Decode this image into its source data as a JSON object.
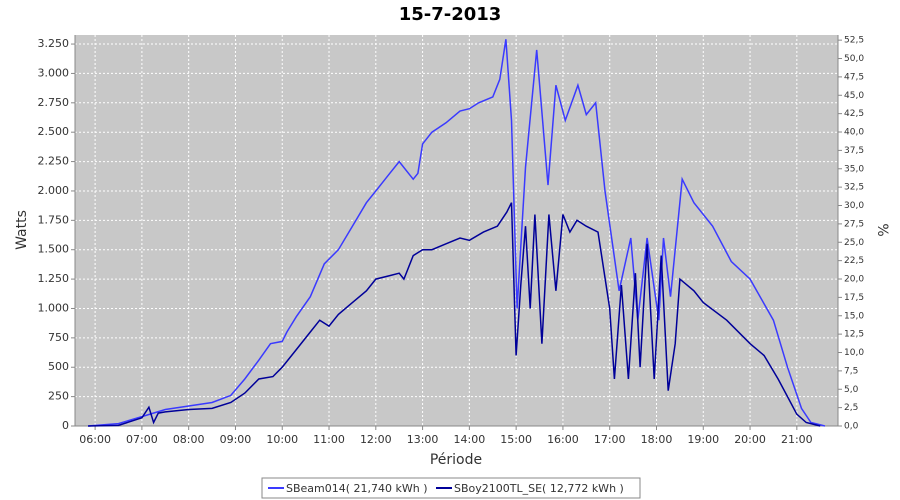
{
  "chart_data": {
    "type": "line",
    "title": "15-7-2013",
    "x_label": "Période",
    "y_label": "Watts",
    "y2_label": "%",
    "xlim": [
      5.57,
      21.88
    ],
    "xticks": [
      {
        "value": 6,
        "label": "06:00"
      },
      {
        "value": 7,
        "label": "07:00"
      },
      {
        "value": 8,
        "label": "08:00"
      },
      {
        "value": 9,
        "label": "09:00"
      },
      {
        "value": 10,
        "label": "10:00"
      },
      {
        "value": 11,
        "label": "11:00"
      },
      {
        "value": 12,
        "label": "12:00"
      },
      {
        "value": 13,
        "label": "13:00"
      },
      {
        "value": 14,
        "label": "14:00"
      },
      {
        "value": 15,
        "label": "15:00"
      },
      {
        "value": 16,
        "label": "16:00"
      },
      {
        "value": 17,
        "label": "17:00"
      },
      {
        "value": 18,
        "label": "18:00"
      },
      {
        "value": 19,
        "label": "19:00"
      },
      {
        "value": 20,
        "label": "20:00"
      },
      {
        "value": 21,
        "label": "21:00"
      }
    ],
    "ylim": [
      0,
      3327
    ],
    "yticks": [
      0,
      250,
      500,
      750,
      {
        "value": 1000,
        "label": "1.000"
      },
      {
        "value": 1250,
        "label": "1.250"
      },
      {
        "value": 1500,
        "label": "1.500"
      },
      {
        "value": 1750,
        "label": "1.750"
      },
      {
        "value": 2000,
        "label": "2.000"
      },
      {
        "value": 2250,
        "label": "2.250"
      },
      {
        "value": 2500,
        "label": "2.500"
      },
      {
        "value": 2750,
        "label": "2.750"
      },
      {
        "value": 3000,
        "label": "3.000"
      },
      {
        "value": 3250,
        "label": "3.250"
      }
    ],
    "y2lim": [
      0,
      53.2
    ],
    "y2ticks": [
      {
        "value": 0,
        "label": "0,0"
      },
      {
        "value": 2.5,
        "label": "2,5"
      },
      {
        "value": 5,
        "label": "5,0"
      },
      {
        "value": 7.5,
        "label": "7,5"
      },
      {
        "value": 10,
        "label": "10,0"
      },
      {
        "value": 12.5,
        "label": "12,5"
      },
      {
        "value": 15,
        "label": "15,0"
      },
      {
        "value": 17.5,
        "label": "17,5"
      },
      {
        "value": 20,
        "label": "20,0"
      },
      {
        "value": 22.5,
        "label": "22,5"
      },
      {
        "value": 25,
        "label": "25,0"
      },
      {
        "value": 27.5,
        "label": "27,5"
      },
      {
        "value": 30,
        "label": "30,0"
      },
      {
        "value": 32.5,
        "label": "32,5"
      },
      {
        "value": 35,
        "label": "35,0"
      },
      {
        "value": 37.5,
        "label": "37,5"
      },
      {
        "value": 40,
        "label": "40,0"
      },
      {
        "value": 42.5,
        "label": "42,5"
      },
      {
        "value": 45,
        "label": "45,0"
      },
      {
        "value": 47.5,
        "label": "47,5"
      },
      {
        "value": 50,
        "label": "50,0"
      },
      {
        "value": 52.5,
        "label": "52,5"
      }
    ],
    "grid": true,
    "series": [
      {
        "name": "SBeam014( 21,740 kWh )",
        "color": "#3a3aff",
        "x": [
          5.85,
          6.5,
          7.0,
          7.5,
          8.0,
          8.5,
          8.9,
          9.2,
          9.5,
          9.75,
          10.0,
          10.1,
          10.3,
          10.6,
          10.9,
          11.2,
          11.5,
          11.8,
          12.0,
          12.3,
          12.5,
          12.7,
          12.8,
          12.9,
          13.0,
          13.2,
          13.5,
          13.8,
          14.0,
          14.2,
          14.5,
          14.65,
          14.78,
          14.9,
          15.02,
          15.2,
          15.44,
          15.68,
          15.85,
          16.05,
          16.32,
          16.5,
          16.7,
          16.9,
          17.2,
          17.45,
          17.6,
          17.8,
          18.05,
          18.15,
          18.3,
          18.55,
          18.8,
          19.2,
          19.6,
          20.0,
          20.5,
          20.8,
          21.1,
          21.3,
          21.6
        ],
        "values": [
          0,
          20,
          80,
          140,
          170,
          200,
          260,
          400,
          560,
          700,
          720,
          800,
          930,
          1100,
          1380,
          1500,
          1700,
          1900,
          2000,
          2150,
          2250,
          2150,
          2100,
          2150,
          2400,
          2500,
          2580,
          2680,
          2700,
          2750,
          2800,
          2950,
          3290,
          2600,
          1000,
          2200,
          3200,
          2050,
          2900,
          2600,
          2900,
          2650,
          2750,
          2000,
          1150,
          1600,
          900,
          1600,
          900,
          1600,
          1100,
          2100,
          1900,
          1700,
          1400,
          1250,
          900,
          500,
          150,
          30,
          0
        ]
      },
      {
        "name": "SBoy2100TL_SE( 12,772 kWh )",
        "color": "#000099",
        "x": [
          5.85,
          6.5,
          7.0,
          7.15,
          7.25,
          7.35,
          7.5,
          8.0,
          8.5,
          8.9,
          9.2,
          9.5,
          9.8,
          10.0,
          10.3,
          10.6,
          10.8,
          11.0,
          11.2,
          11.5,
          11.8,
          12.0,
          12.3,
          12.5,
          12.6,
          12.8,
          13.0,
          13.2,
          13.5,
          13.8,
          14.0,
          14.3,
          14.6,
          14.8,
          14.9,
          15.0,
          15.1,
          15.2,
          15.3,
          15.4,
          15.55,
          15.7,
          15.85,
          16.0,
          16.15,
          16.3,
          16.5,
          16.75,
          17.0,
          17.1,
          17.25,
          17.4,
          17.55,
          17.65,
          17.8,
          17.95,
          18.1,
          18.25,
          18.4,
          18.5,
          18.8,
          19.0,
          19.5,
          20.0,
          20.3,
          20.6,
          20.8,
          21.0,
          21.2,
          21.5
        ],
        "values": [
          0,
          5,
          70,
          160,
          30,
          110,
          120,
          140,
          150,
          200,
          280,
          400,
          420,
          500,
          650,
          800,
          900,
          850,
          950,
          1050,
          1150,
          1250,
          1280,
          1300,
          1250,
          1450,
          1500,
          1500,
          1550,
          1600,
          1580,
          1650,
          1700,
          1820,
          1900,
          600,
          1200,
          1700,
          1000,
          1800,
          700,
          1800,
          1150,
          1800,
          1650,
          1750,
          1700,
          1650,
          1000,
          400,
          1200,
          400,
          1300,
          500,
          1550,
          400,
          1450,
          300,
          700,
          1250,
          1150,
          1050,
          900,
          700,
          600,
          400,
          250,
          100,
          30,
          0
        ]
      }
    ]
  }
}
